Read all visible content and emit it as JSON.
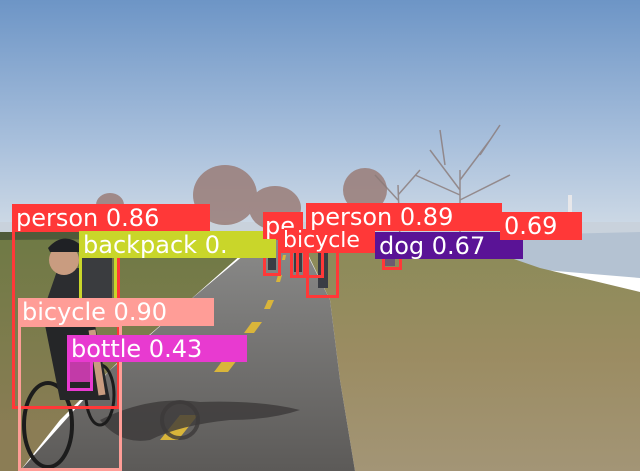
{
  "colors": {
    "person": "#ff3838",
    "backpack": "#c9d62a",
    "bicycle": "#ff9d97",
    "bicycle_far": "#ff3838",
    "bottle": "#e83ad0",
    "dog": "#5a1396",
    "sky_top": "#6f97c8",
    "sky_bottom": "#c7d6e6",
    "water": "#b7c4d4",
    "grass": "#8c8154",
    "path": "#6d6a67"
  },
  "detections": [
    {
      "label": "person 0.86",
      "class": "person"
    },
    {
      "label": "backpack 0.",
      "class": "backpack"
    },
    {
      "label": "bicycle 0.90",
      "class": "bicycle"
    },
    {
      "label": "bottle 0.43",
      "class": "bottle"
    },
    {
      "label": "pe",
      "class": "person"
    },
    {
      "label": "person 0.89",
      "class": "person"
    },
    {
      "label": "0.69",
      "class": "person"
    },
    {
      "label": "bicycle",
      "class": "bicycle_far"
    },
    {
      "label": "dog 0.67",
      "class": "dog"
    }
  ]
}
